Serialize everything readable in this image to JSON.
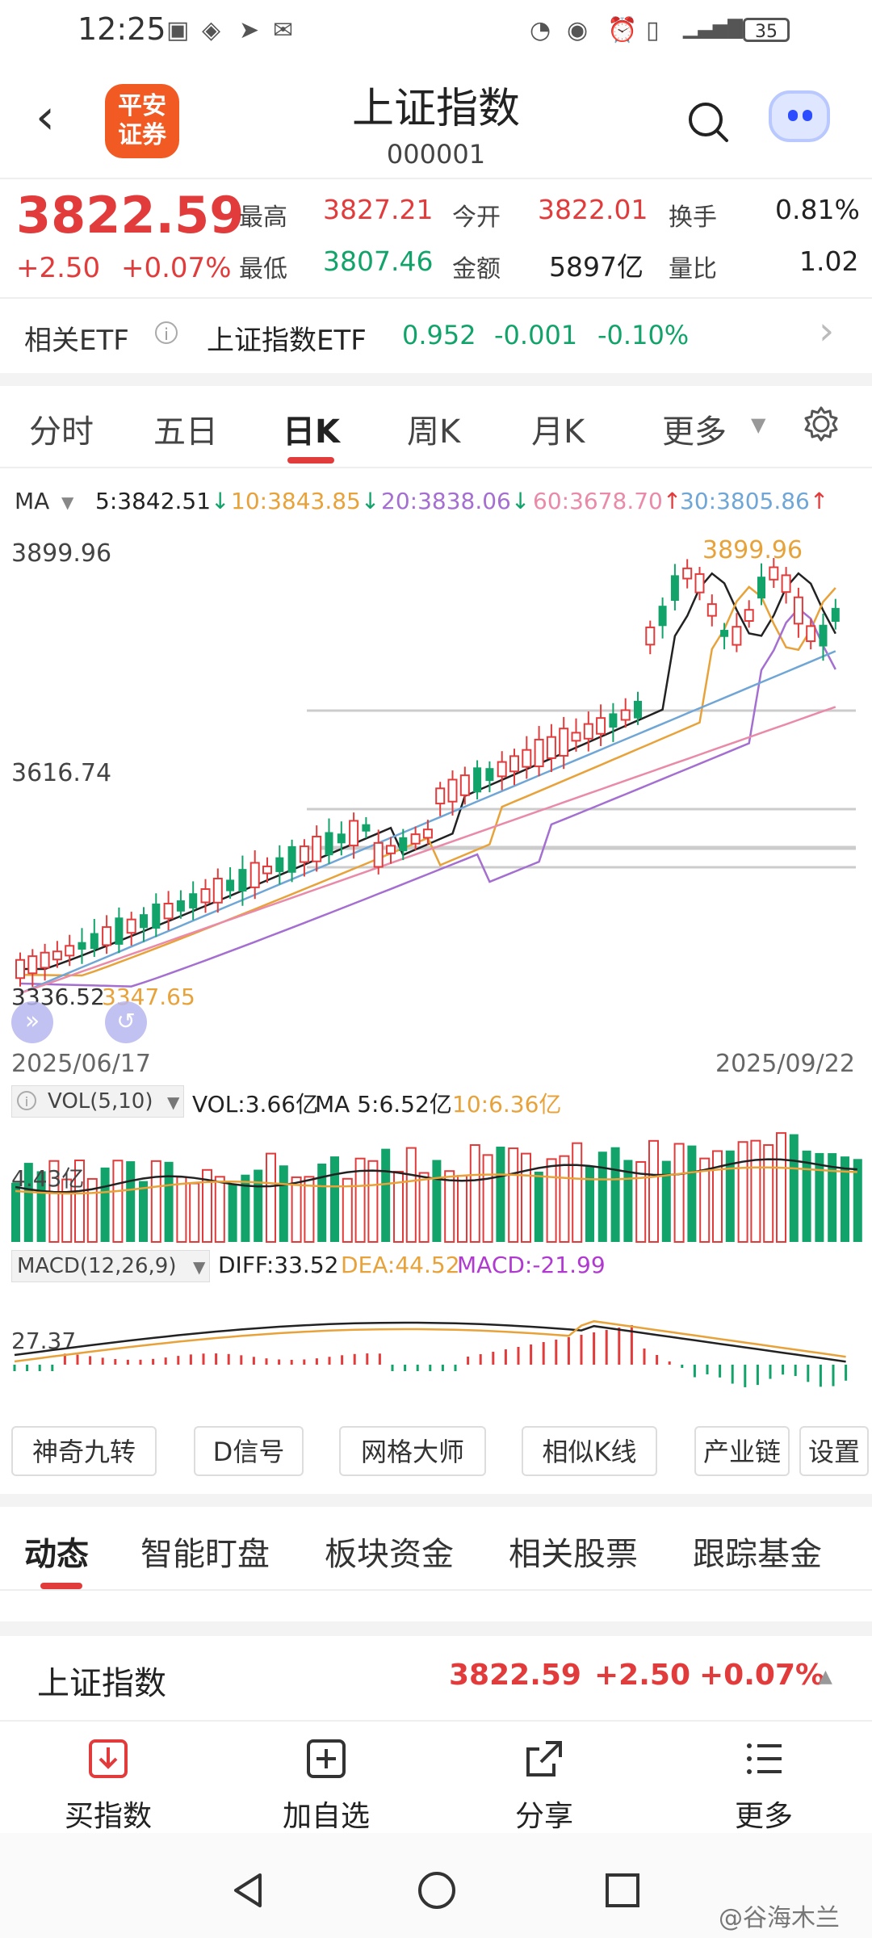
{
  "status": {
    "time": "12:25",
    "battery": "35"
  },
  "header": {
    "logo_text": "平安\n证券",
    "title": "上证指数",
    "code": "000001"
  },
  "quote": {
    "price": "3822.59",
    "change": "+2.50",
    "change_pct": "+0.07%",
    "items": [
      {
        "label": "最高",
        "value": "3827.21"
      },
      {
        "label": "最低",
        "value": "3807.46"
      },
      {
        "label": "今开",
        "value": "3822.01"
      },
      {
        "label": "金额",
        "value": "5897亿"
      },
      {
        "label": "换手",
        "value": "0.81%"
      },
      {
        "label": "量比",
        "value": "1.02"
      }
    ]
  },
  "etf": {
    "label": "相关ETF",
    "name": "上证指数ETF",
    "price": "0.952",
    "change": "-0.001",
    "change_pct": "-0.10%"
  },
  "chart_tabs": [
    "分时",
    "五日",
    "日K",
    "周K",
    "月K",
    "更多"
  ],
  "ma_legend": {
    "label": "MA",
    "items": [
      {
        "text": "5:3842.51",
        "arrow": "↓",
        "color": "#222222"
      },
      {
        "text": "10:3843.85",
        "arrow": "↓",
        "color": "#e8a23a"
      },
      {
        "text": "20:3838.06",
        "arrow": "↓",
        "color": "#a46fd0"
      },
      {
        "text": "60:3678.70",
        "arrow": "↑",
        "color": "#e98aa8"
      },
      {
        "text": "30:3805.86",
        "arrow": "↑",
        "color": "#6fa6d6"
      }
    ]
  },
  "kline": {
    "y_high": "3899.96",
    "y_mid": "3616.74",
    "low_marker": "3347.65",
    "high_marker": "3899.96",
    "left_cut": "3336.52",
    "date_start": "2025/06/17",
    "date_end": "2025/09/22"
  },
  "vol": {
    "indicator": "VOL(5,10)",
    "vol": "VOL:3.66亿",
    "ma5": "MA 5:6.52亿",
    "ma10": "10:6.36亿",
    "axis": "4.43亿"
  },
  "macd": {
    "indicator": "MACD(12,26,9)",
    "diff": "DIFF:33.52",
    "dea": "DEA:44.52",
    "macd": "MACD:-21.99",
    "axis": "27.37"
  },
  "tools": [
    "神奇九转",
    "D信号",
    "网格大师",
    "相似K线",
    "产业链",
    "设置"
  ],
  "news_tabs": [
    "动态",
    "智能盯盘",
    "板块资金",
    "相关股票",
    "跟踪基金"
  ],
  "bottom_quote": {
    "name": "上证指数",
    "price": "3822.59",
    "change": "+2.50",
    "change_pct": "+0.07%"
  },
  "bottom_bar": [
    "买指数",
    "加自选",
    "分享",
    "更多"
  ],
  "watermark": "@谷海木兰",
  "colors": {
    "up": "#e23b3b",
    "down": "#12a36a",
    "accent": "#f15a22"
  }
}
